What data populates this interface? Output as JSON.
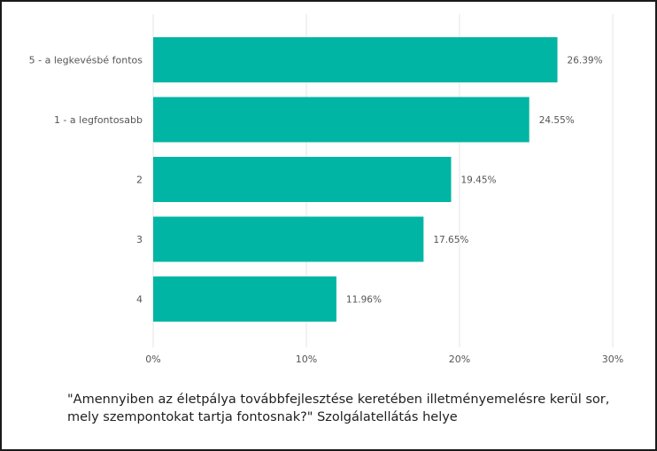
{
  "chart_data": {
    "type": "bar",
    "orientation": "horizontal",
    "categories": [
      "5 - a legkevésbé fontos",
      "1 - a legfontosabb",
      "2",
      "3",
      "4"
    ],
    "values": [
      26.39,
      24.55,
      19.45,
      17.65,
      11.96
    ],
    "value_labels": [
      "26.39%",
      "24.55%",
      "19.45%",
      "17.65%",
      "11.96%"
    ],
    "xlim": [
      0,
      30
    ],
    "xticks": [
      0,
      10,
      20,
      30
    ],
    "xtick_labels": [
      "0%",
      "10%",
      "20%",
      "30%"
    ],
    "grid": "vertical",
    "bar_color": "#00b5a3"
  },
  "caption": {
    "line1": "\"Amennyiben az életpálya továbbfejlesztése keretében illetményemelésre kerül sor,",
    "line2": "mely szempontokat tartja fontosnak?\" Szolgálatellátás helye"
  },
  "colors": {
    "bar": "#00b5a3",
    "grid": "#e6e6e6",
    "label": "#555555"
  }
}
